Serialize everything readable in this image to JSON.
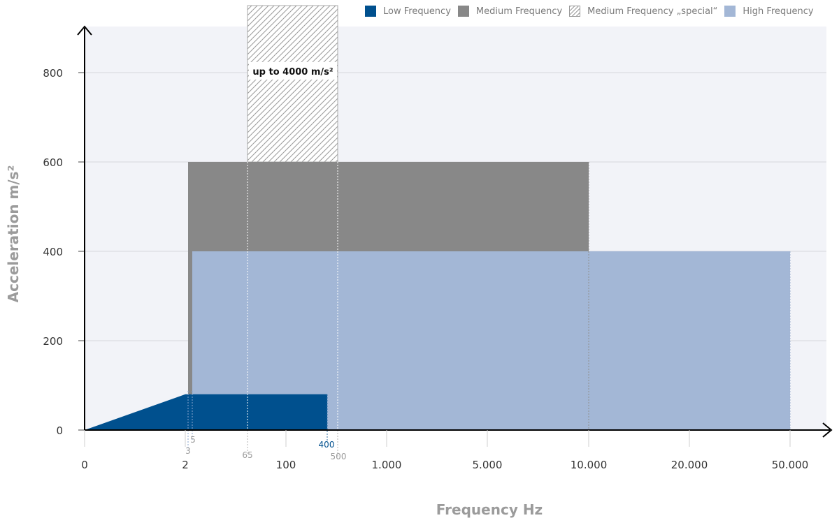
{
  "chart_data": {
    "type": "area",
    "title": "",
    "xlabel": "Frequency Hz",
    "ylabel": "Acceleration m/s²",
    "x_scale": "categorical (non-linear)",
    "x_ticks": [
      "0",
      "2",
      "100",
      "1.000",
      "5.000",
      "10.000",
      "20.000",
      "50.000"
    ],
    "y_ticks": [
      "0",
      "200",
      "400",
      "600",
      "800"
    ],
    "ylim": [
      0,
      900
    ],
    "grid": "horizontal",
    "legend_position": "top-right",
    "series": [
      {
        "name": "High Frequency",
        "color": "#a3b7d6",
        "x_from": "5",
        "x_to": "50.000",
        "y": 400
      },
      {
        "name": "Medium Frequency",
        "color": "#888888",
        "x_from": "3",
        "x_to": "10.000",
        "y": 600,
        "y_min_from_x": "5",
        "y_min": 400
      },
      {
        "name": "Medium Frequency „special“",
        "color": "#bdbdbd",
        "pattern": "hatch",
        "x_from": "65",
        "x_to": "500",
        "y_from": 600,
        "y_to": "above 900",
        "annotation": "up to 4000 m/s²"
      },
      {
        "name": "Low Frequency",
        "color": "#00508e",
        "points": [
          [
            "0",
            0
          ],
          [
            "2",
            80
          ],
          [
            "400",
            80
          ]
        ]
      }
    ],
    "marker_labels": [
      {
        "text": "3",
        "color": "#9b9b9b"
      },
      {
        "text": "5",
        "color": "#9b9b9b"
      },
      {
        "text": "65",
        "color": "#9b9b9b"
      },
      {
        "text": "400",
        "color": "#00508e"
      },
      {
        "text": "500",
        "color": "#9b9b9b"
      }
    ]
  }
}
